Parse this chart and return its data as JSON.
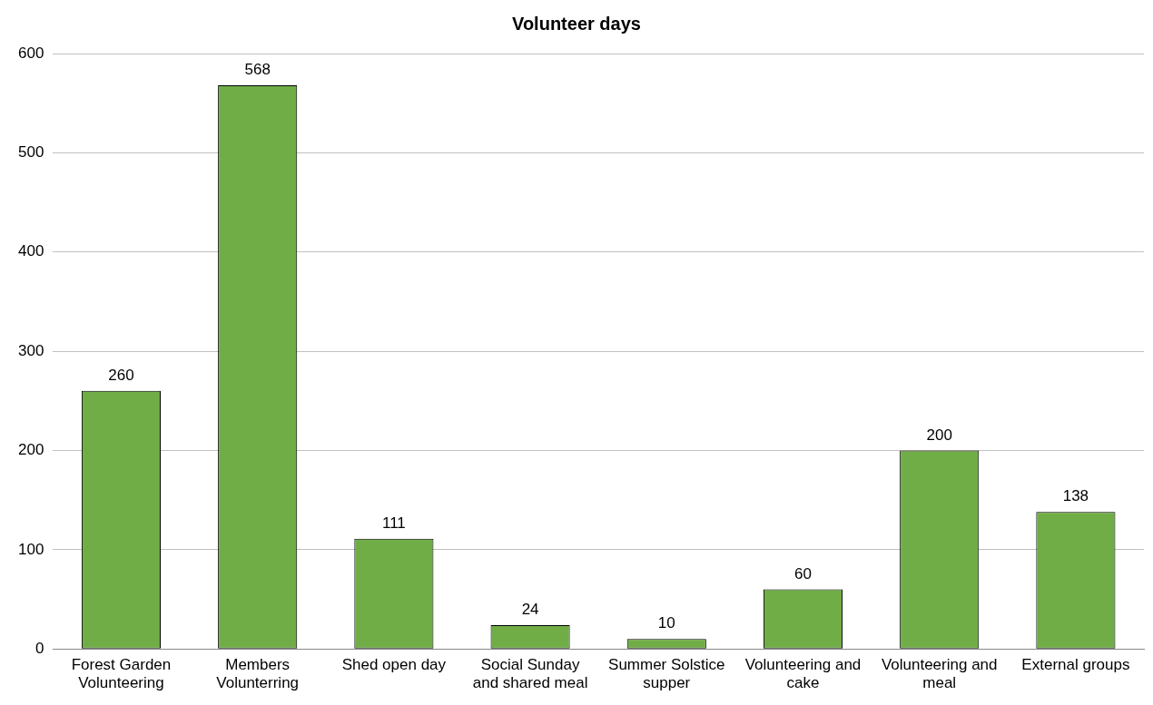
{
  "chart_data": {
    "type": "bar",
    "title": "Volunteer days",
    "categories": [
      "Forest Garden Volunteering",
      "Members Volunterring",
      "Shed open day",
      "Social Sunday and shared meal",
      "Summer Solstice supper",
      "Volunteering and cake",
      "Volunteering and meal",
      "External groups"
    ],
    "values": [
      260,
      568,
      111,
      24,
      10,
      60,
      200,
      138
    ],
    "color": "#70ad47",
    "ylim": [
      0,
      600
    ],
    "yticks": [
      0,
      100,
      200,
      300,
      400,
      500,
      600
    ],
    "grid": "y",
    "legend": false,
    "data_labels": true
  }
}
